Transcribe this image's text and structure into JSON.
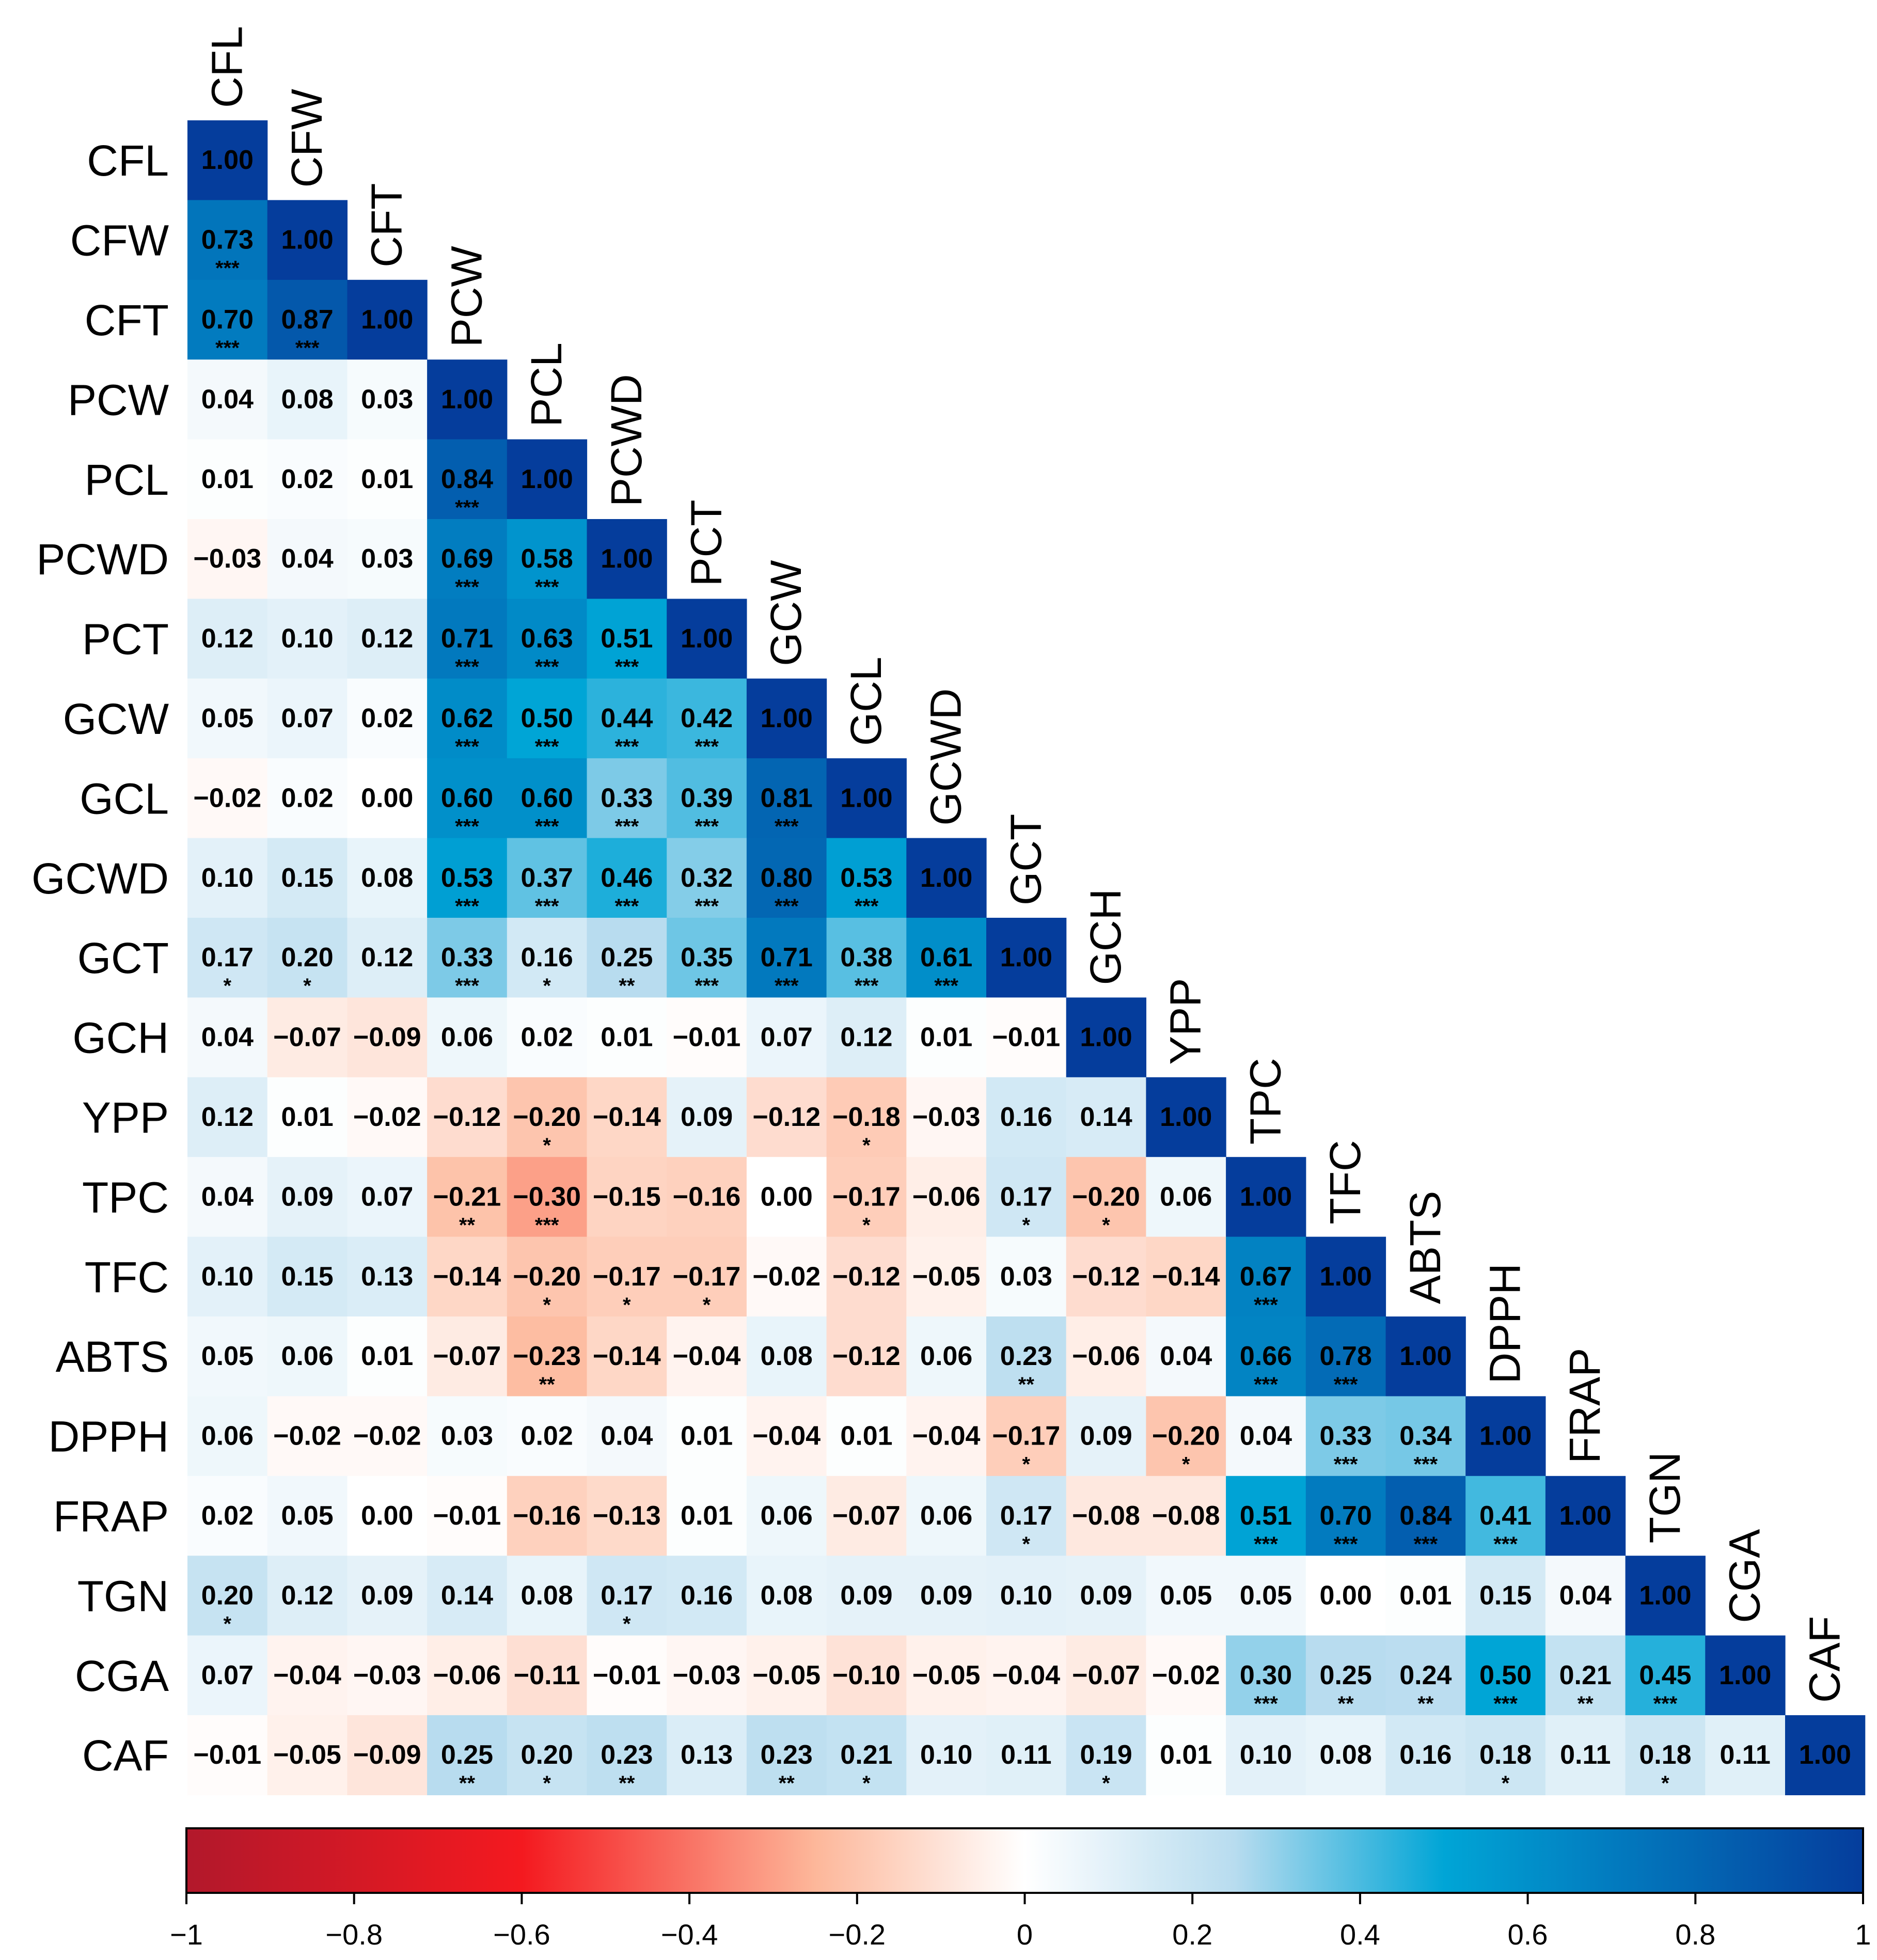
{
  "chart_data": {
    "type": "heatmap",
    "subtype": "lower-triangle correlation matrix",
    "variables": [
      "CFL",
      "CFW",
      "CFT",
      "PCW",
      "PCL",
      "PCWD",
      "PCT",
      "GCW",
      "GCL",
      "GCWD",
      "GCT",
      "GCH",
      "YPP",
      "TPC",
      "TFC",
      "ABTS",
      "DPPH",
      "FRAP",
      "TGN",
      "CGA",
      "CAF"
    ],
    "value_labels": [
      [
        "1.00"
      ],
      [
        "0.73",
        "1.00"
      ],
      [
        "0.70",
        "0.87",
        "1.00"
      ],
      [
        "0.04",
        "0.08",
        "0.03",
        "1.00"
      ],
      [
        "0.01",
        "0.02",
        "0.01",
        "0.84",
        "1.00"
      ],
      [
        "−0.03",
        "0.04",
        "0.03",
        "0.69",
        "0.58",
        "1.00"
      ],
      [
        "0.12",
        "0.10",
        "0.12",
        "0.71",
        "0.63",
        "0.51",
        "1.00"
      ],
      [
        "0.05",
        "0.07",
        "0.02",
        "0.62",
        "0.50",
        "0.44",
        "0.42",
        "1.00"
      ],
      [
        "−0.02",
        "0.02",
        "0.00",
        "0.60",
        "0.60",
        "0.33",
        "0.39",
        "0.81",
        "1.00"
      ],
      [
        "0.10",
        "0.15",
        "0.08",
        "0.53",
        "0.37",
        "0.46",
        "0.32",
        "0.80",
        "0.53",
        "1.00"
      ],
      [
        "0.17",
        "0.20",
        "0.12",
        "0.33",
        "0.16",
        "0.25",
        "0.35",
        "0.71",
        "0.38",
        "0.61",
        "1.00"
      ],
      [
        "0.04",
        "−0.07",
        "−0.09",
        "0.06",
        "0.02",
        "0.01",
        "−0.01",
        "0.07",
        "0.12",
        "0.01",
        "−0.01",
        "1.00"
      ],
      [
        "0.12",
        "0.01",
        "−0.02",
        "−0.12",
        "−0.20",
        "−0.14",
        "0.09",
        "−0.12",
        "−0.18",
        "−0.03",
        "0.16",
        "0.14",
        "1.00"
      ],
      [
        "0.04",
        "0.09",
        "0.07",
        "−0.21",
        "−0.30",
        "−0.15",
        "−0.16",
        "0.00",
        "−0.17",
        "−0.06",
        "0.17",
        "−0.20",
        "0.06",
        "1.00"
      ],
      [
        "0.10",
        "0.15",
        "0.13",
        "−0.14",
        "−0.20",
        "−0.17",
        "−0.17",
        "−0.02",
        "−0.12",
        "−0.05",
        "0.03",
        "−0.12",
        "−0.14",
        "0.67",
        "1.00"
      ],
      [
        "0.05",
        "0.06",
        "0.01",
        "−0.07",
        "−0.23",
        "−0.14",
        "−0.04",
        "0.08",
        "−0.12",
        "0.06",
        "0.23",
        "−0.06",
        "0.04",
        "0.66",
        "0.78",
        "1.00"
      ],
      [
        "0.06",
        "−0.02",
        "−0.02",
        "0.03",
        "0.02",
        "0.04",
        "0.01",
        "−0.04",
        "0.01",
        "−0.04",
        "−0.17",
        "0.09",
        "−0.20",
        "0.04",
        "0.33",
        "0.34",
        "1.00"
      ],
      [
        "0.02",
        "0.05",
        "0.00",
        "−0.01",
        "−0.16",
        "−0.13",
        "0.01",
        "0.06",
        "−0.07",
        "0.06",
        "0.17",
        "−0.08",
        "−0.08",
        "0.51",
        "0.70",
        "0.84",
        "0.41",
        "1.00"
      ],
      [
        "0.20",
        "0.12",
        "0.09",
        "0.14",
        "0.08",
        "0.17",
        "0.16",
        "0.08",
        "0.09",
        "0.09",
        "0.10",
        "0.09",
        "0.05",
        "0.05",
        "0.00",
        "0.01",
        "0.15",
        "0.04",
        "1.00"
      ],
      [
        "0.07",
        "−0.04",
        "−0.03",
        "−0.06",
        "−0.11",
        "−0.01",
        "−0.03",
        "−0.05",
        "−0.10",
        "−0.05",
        "−0.04",
        "−0.07",
        "−0.02",
        "0.30",
        "0.25",
        "0.24",
        "0.50",
        "0.21",
        "0.45",
        "1.00"
      ],
      [
        "−0.01",
        "−0.05",
        "−0.09",
        "0.25",
        "0.20",
        "0.23",
        "0.13",
        "0.23",
        "0.21",
        "0.10",
        "0.11",
        "0.19",
        "0.01",
        "0.10",
        "0.08",
        "0.16",
        "0.18",
        "0.11",
        "0.18",
        "0.11",
        "1.00"
      ]
    ],
    "significance": [
      [
        ""
      ],
      [
        "***",
        ""
      ],
      [
        "***",
        "***",
        ""
      ],
      [
        "",
        "",
        "",
        ""
      ],
      [
        "",
        "",
        "",
        "***",
        ""
      ],
      [
        "",
        "",
        "",
        "***",
        "***",
        ""
      ],
      [
        "",
        "",
        "",
        "***",
        "***",
        "***",
        ""
      ],
      [
        "",
        "",
        "",
        "***",
        "***",
        "***",
        "***",
        ""
      ],
      [
        "",
        "",
        "",
        "***",
        "***",
        "***",
        "***",
        "***",
        ""
      ],
      [
        "",
        "",
        "",
        "***",
        "***",
        "***",
        "***",
        "***",
        "***",
        ""
      ],
      [
        "*",
        "*",
        "",
        "***",
        "*",
        "**",
        "***",
        "***",
        "***",
        "***",
        ""
      ],
      [
        "",
        "",
        "",
        "",
        "",
        "",
        "",
        "",
        "",
        "",
        "",
        ""
      ],
      [
        "",
        "",
        "",
        "",
        "*",
        "",
        "",
        "",
        "*",
        "",
        "",
        "",
        ""
      ],
      [
        "",
        "",
        "",
        "**",
        "***",
        "",
        "",
        "",
        "*",
        "",
        "*",
        "*",
        "",
        ""
      ],
      [
        "",
        "",
        "",
        "",
        "*",
        "*",
        "*",
        "",
        "",
        "",
        "",
        "",
        "",
        "***",
        ""
      ],
      [
        "",
        "",
        "",
        "",
        "**",
        "",
        "",
        "",
        "",
        "",
        "**",
        "",
        "",
        "***",
        "***",
        ""
      ],
      [
        "",
        "",
        "",
        "",
        "",
        "",
        "",
        "",
        "",
        "",
        "*",
        "",
        "*",
        "",
        "***",
        "***",
        ""
      ],
      [
        "",
        "",
        "",
        "",
        "",
        "",
        "",
        "",
        "",
        "",
        "*",
        "",
        "",
        "***",
        "***",
        "***",
        "***",
        ""
      ],
      [
        "*",
        "",
        "",
        "",
        "",
        "*",
        "",
        "",
        "",
        "",
        "",
        "",
        "",
        "",
        "",
        "",
        "",
        "",
        ""
      ],
      [
        "",
        "",
        "",
        "",
        "",
        "",
        "",
        "",
        "",
        "",
        "",
        "",
        "",
        "***",
        "**",
        "**",
        "***",
        "**",
        "***",
        ""
      ],
      [
        "",
        "",
        "",
        "**",
        "*",
        "**",
        "",
        "**",
        "*",
        "",
        "",
        "*",
        "",
        "",
        "",
        "",
        "*",
        "",
        "*",
        "",
        ""
      ]
    ],
    "colorbar": {
      "range": [
        -1,
        1
      ],
      "ticks": [
        "−1",
        "−0.8",
        "−0.6",
        "−0.4",
        "−0.2",
        "0",
        "0.2",
        "0.4",
        "0.6",
        "0.8",
        "1"
      ],
      "colors": {
        "neg_full": "#b2182b",
        "neg_mid": "#f4191f",
        "neg_light": "#fdb79a",
        "zero": "#ffffff",
        "pos_light": "#b8dcef",
        "pos_mid": "#00a5d6",
        "pos_full": "#053d9c"
      }
    }
  }
}
